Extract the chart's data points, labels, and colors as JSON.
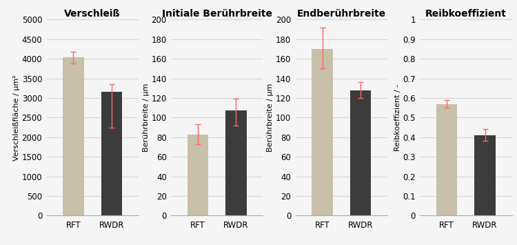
{
  "subplots": [
    {
      "title": "Verschleiß",
      "ylabel": "Verschleißfläche / μm²",
      "ylim": [
        0,
        5000
      ],
      "yticks": [
        0,
        500,
        1000,
        1500,
        2000,
        2500,
        3000,
        3500,
        4000,
        4500,
        5000
      ],
      "bar_values": [
        4030,
        3150
      ],
      "error_upper": [
        150,
        200
      ],
      "error_lower": [
        150,
        900
      ]
    },
    {
      "title": "Initiale Berührbreite",
      "ylabel": "Berührbreite / μm",
      "ylim": [
        0,
        200
      ],
      "yticks": [
        0,
        20,
        40,
        60,
        80,
        100,
        120,
        140,
        160,
        180,
        200
      ],
      "bar_values": [
        83,
        107
      ],
      "error_upper": [
        10,
        12
      ],
      "error_lower": [
        10,
        15
      ]
    },
    {
      "title": "Endberührbreite",
      "ylabel": "Berührbreite / μm",
      "ylim": [
        0,
        200
      ],
      "yticks": [
        0,
        20,
        40,
        60,
        80,
        100,
        120,
        140,
        160,
        180,
        200
      ],
      "bar_values": [
        170,
        128
      ],
      "error_upper": [
        22,
        8
      ],
      "error_lower": [
        20,
        8
      ]
    },
    {
      "title": "Reibkoeffizient",
      "ylabel": "Reibkoeffizient / -",
      "ylim": [
        0,
        1
      ],
      "yticks": [
        0,
        0.1,
        0.2,
        0.3,
        0.4,
        0.5,
        0.6,
        0.7,
        0.8,
        0.9,
        1.0
      ],
      "bar_values": [
        0.57,
        0.41
      ],
      "error_upper": [
        0.02,
        0.03
      ],
      "error_lower": [
        0.02,
        0.03
      ]
    }
  ],
  "categories": [
    "RFT",
    "RWDR"
  ],
  "bar_colors": [
    "#c8bfa8",
    "#3c3c3c"
  ],
  "error_color": "#ff6666",
  "bar_width": 0.55,
  "background_color": "#f5f5f5",
  "grid_color": "#cccccc",
  "title_fontsize": 10,
  "label_fontsize": 8,
  "tick_fontsize": 8.5
}
